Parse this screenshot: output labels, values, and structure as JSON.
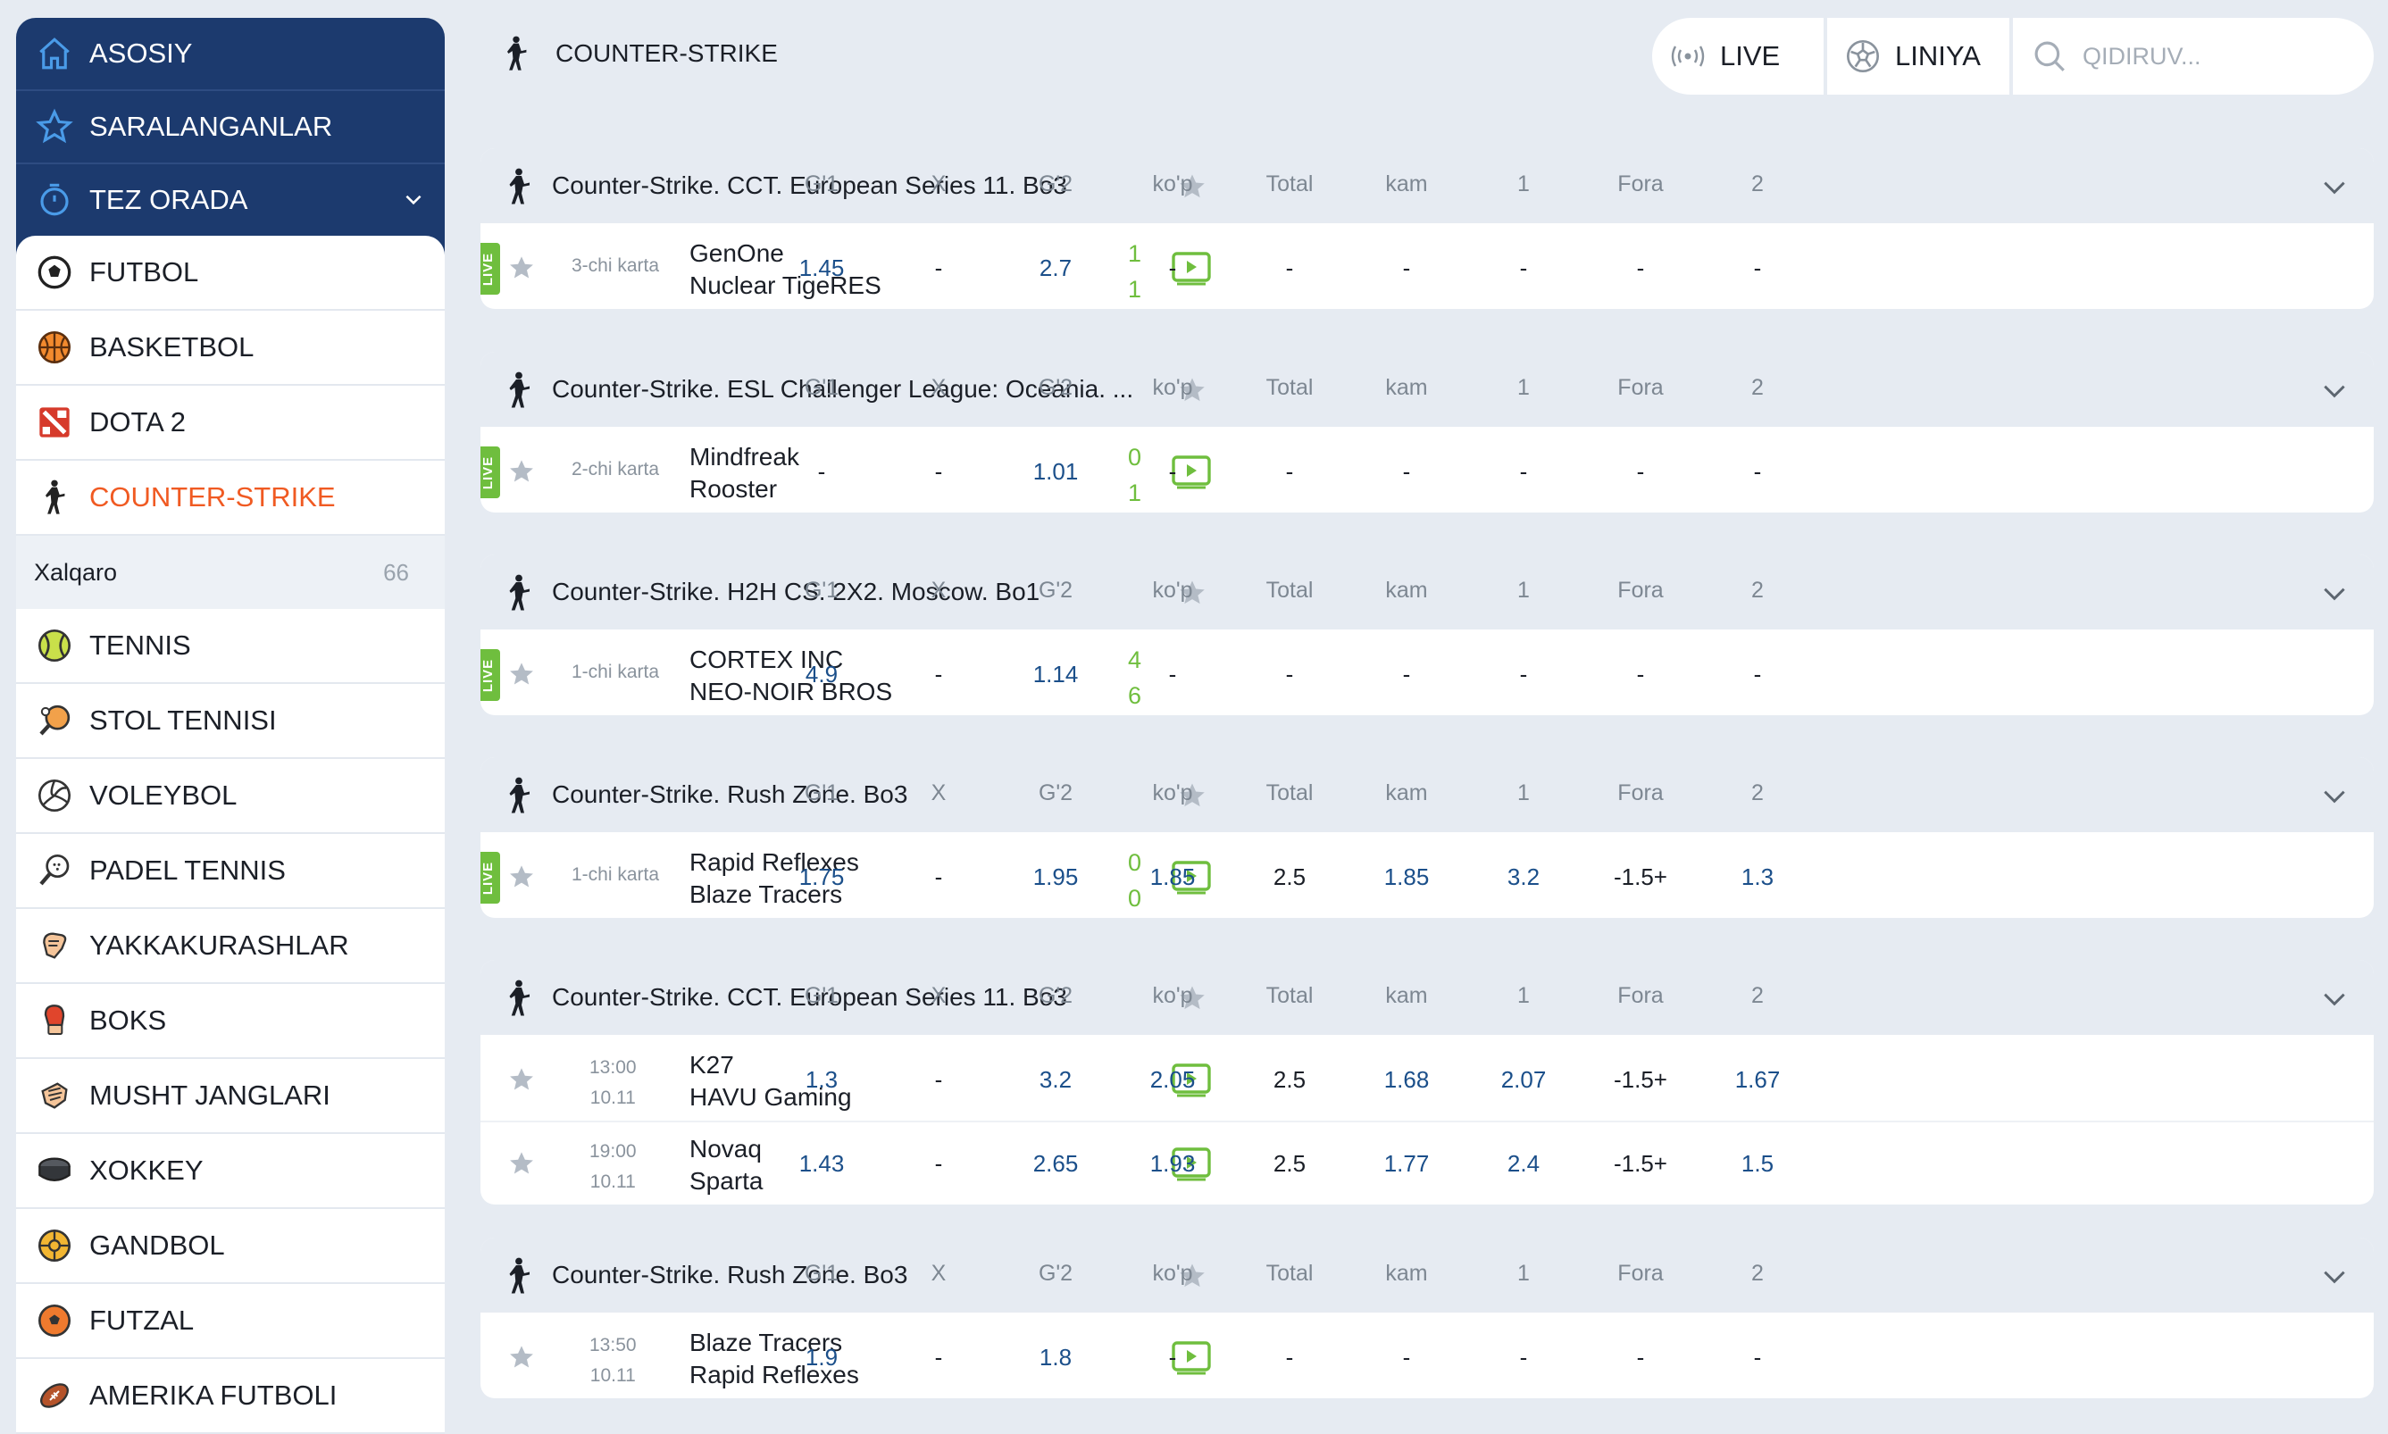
{
  "sidebar": {
    "top": [
      {
        "label": "ASOSIY",
        "icon": "home-icon"
      },
      {
        "label": "SARALANGANLAR",
        "icon": "star-icon"
      },
      {
        "label": "TEZ ORADA",
        "icon": "stopwatch-icon"
      }
    ],
    "sports": [
      {
        "label": "FUTBOL",
        "icon": "football-icon"
      },
      {
        "label": "BASKETBOL",
        "icon": "basketball-icon"
      },
      {
        "label": "DOTA 2",
        "icon": "dota-icon"
      },
      {
        "label": "COUNTER-STRIKE",
        "icon": "counter-strike-icon"
      },
      {
        "label": "TENNIS",
        "icon": "tennis-icon"
      },
      {
        "label": "STOL TENNISI",
        "icon": "table-tennis-icon"
      },
      {
        "label": "VOLEYBOL",
        "icon": "volleyball-icon"
      },
      {
        "label": "PADEL TENNIS",
        "icon": "padel-icon"
      },
      {
        "label": "YAKKAKURASHLAR",
        "icon": "martial-arts-icon"
      },
      {
        "label": "BOKS",
        "icon": "boxing-glove-icon"
      },
      {
        "label": "MUSHT JANGLARI",
        "icon": "fist-icon"
      },
      {
        "label": "XOKKEY",
        "icon": "hockey-puck-icon"
      },
      {
        "label": "GANDBOL",
        "icon": "handball-icon"
      },
      {
        "label": "FUTZAL",
        "icon": "futsal-icon"
      },
      {
        "label": "AMERIKA FUTBOLI",
        "icon": "american-football-icon"
      }
    ],
    "sub": {
      "label": "Xalqaro",
      "count": "66"
    }
  },
  "header": {
    "title": "COUNTER-STRIKE",
    "live_label": "LIVE",
    "liniya_label": "LINIYA",
    "search_placeholder": "QIDIRUV..."
  },
  "columns": [
    "G'1",
    "X",
    "G'2",
    "ko'p",
    "Total",
    "kam",
    "1",
    "Fora",
    "2"
  ],
  "accent": "#f05a22",
  "live_color": "#6fbe3e",
  "events": [
    {
      "league": "Counter-Strike. CCT. European Series 11. Bo3",
      "rows": [
        {
          "live": true,
          "live_label": "LIVE",
          "period": "3-chi karta",
          "team1": "GenOne",
          "team2": "Nuclear TigeRES",
          "score1": "1",
          "score2": "1",
          "video": true,
          "odds": [
            "1.45",
            "-",
            "2.7",
            "-",
            "-",
            "-",
            "-",
            "-",
            "-"
          ]
        }
      ]
    },
    {
      "league": "Counter-Strike. ESL Challenger League: Oceania. ...",
      "rows": [
        {
          "live": true,
          "live_label": "LIVE",
          "period": "2-chi karta",
          "team1": "Mindfreak",
          "team2": "Rooster",
          "score1": "0",
          "score2": "1",
          "video": true,
          "odds": [
            "-",
            "-",
            "1.01",
            "-",
            "-",
            "-",
            "-",
            "-",
            "-"
          ]
        }
      ]
    },
    {
      "league": "Counter-Strike. H2H CS. 2X2. Moscow. Bo1",
      "rows": [
        {
          "live": true,
          "live_label": "LIVE",
          "period": "1-chi karta",
          "team1": "CORTEX INC",
          "team2": "NEO-NOIR BROS",
          "score1": "4",
          "score2": "6",
          "video": false,
          "odds": [
            "4.9",
            "-",
            "1.14",
            "-",
            "-",
            "-",
            "-",
            "-",
            "-"
          ]
        }
      ]
    },
    {
      "league": "Counter-Strike. Rush Zone. Bo3",
      "rows": [
        {
          "live": true,
          "live_label": "LIVE",
          "period": "1-chi karta",
          "team1": "Rapid Reflexes",
          "team2": "Blaze Tracers",
          "score1": "0",
          "score2": "0",
          "video": true,
          "odds": [
            "1.75",
            "-",
            "1.95",
            "1.85",
            "2.5",
            "1.85",
            "3.2",
            "-1.5+",
            "1.3"
          ]
        }
      ]
    },
    {
      "league": "Counter-Strike. CCT. European Series 11. Bo3",
      "rows": [
        {
          "live": false,
          "time": "13:00",
          "date": "10.11",
          "team1": "K27",
          "team2": "HAVU Gaming",
          "video": true,
          "odds": [
            "1.3",
            "-",
            "3.2",
            "2.05",
            "2.5",
            "1.68",
            "2.07",
            "-1.5+",
            "1.67"
          ]
        },
        {
          "live": false,
          "time": "19:00",
          "date": "10.11",
          "team1": "Novaq",
          "team2": "Sparta",
          "video": true,
          "odds": [
            "1.43",
            "-",
            "2.65",
            "1.93",
            "2.5",
            "1.77",
            "2.4",
            "-1.5+",
            "1.5"
          ]
        }
      ]
    },
    {
      "league": "Counter-Strike. Rush Zone. Bo3",
      "rows": [
        {
          "live": false,
          "time": "13:50",
          "date": "10.11",
          "team1": "Blaze Tracers",
          "team2": "Rapid Reflexes",
          "video": true,
          "odds": [
            "1.9",
            "-",
            "1.8",
            "-",
            "-",
            "-",
            "-",
            "-",
            "-"
          ]
        }
      ]
    }
  ]
}
